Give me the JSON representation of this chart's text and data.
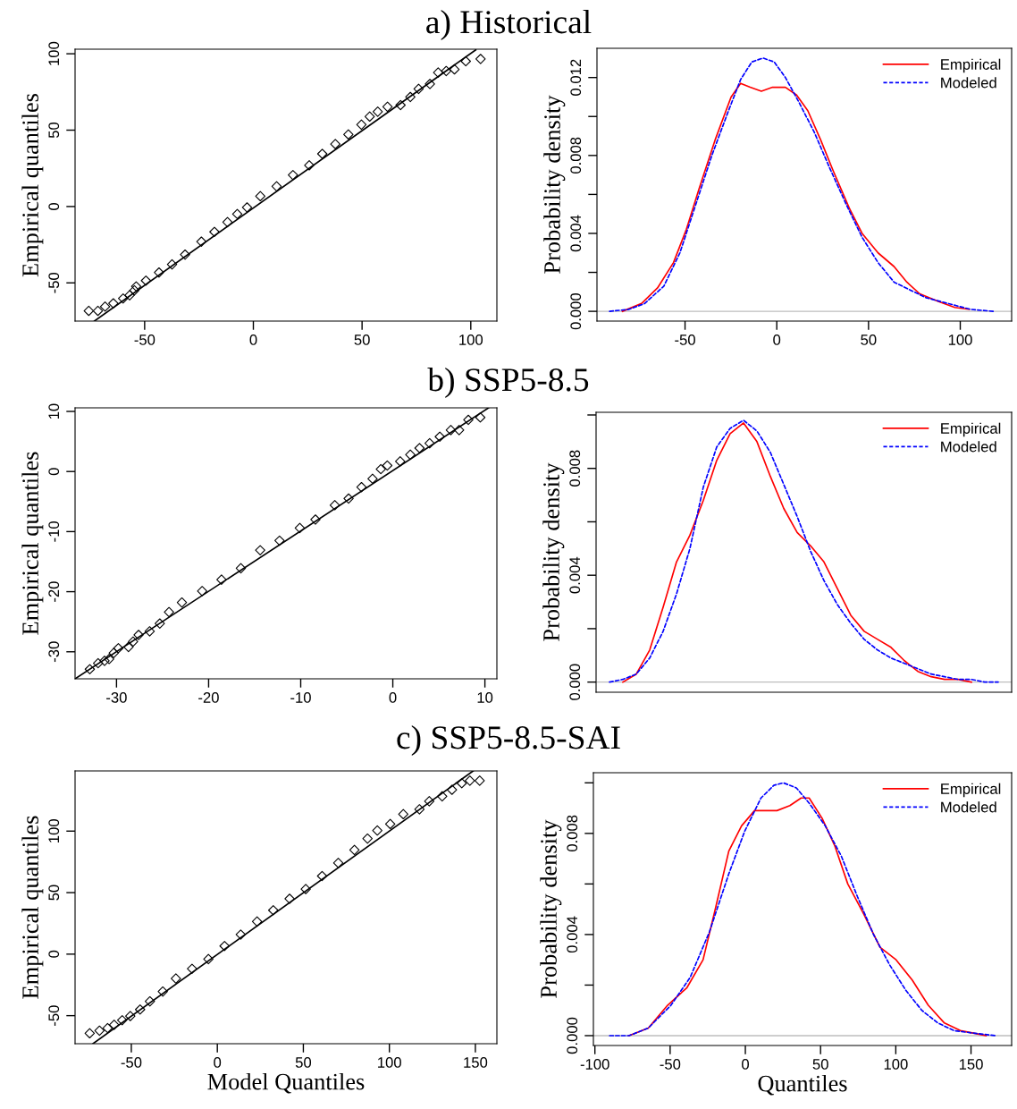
{
  "chart_data": [
    {
      "type": "scatter",
      "title": "a) Historical",
      "ylabel": "Empirical quantiles",
      "xlim": [
        -82,
        112
      ],
      "ylim": [
        -75,
        103
      ],
      "xticks": [
        -50,
        0,
        50,
        100
      ],
      "yticks": [
        -50,
        0,
        50,
        100
      ],
      "series": [
        {
          "type": "scatter",
          "marker": "diamond",
          "color": "#000000",
          "x": [
            -75.7,
            -71.5,
            -68.2,
            -64.4,
            -59.9,
            -56.9,
            -54.7,
            -53.9,
            -49.4,
            -43.4,
            -37.4,
            -31.4,
            -23.9,
            -17.9,
            -11.9,
            -7.4,
            -2.9,
            3.2,
            10.7,
            18.2,
            25.7,
            31.7,
            37.7,
            43.7,
            49.7,
            53.5,
            57.2,
            61.7,
            67.7,
            72.2,
            76.0,
            81.2,
            85.0,
            88.7,
            92.5,
            97.7,
            104.5
          ],
          "values": [
            -68.3,
            -68.3,
            -65.5,
            -63.4,
            -60.2,
            -58.1,
            -54.9,
            -52.3,
            -48.5,
            -43.2,
            -37.9,
            -31.5,
            -23.0,
            -16.6,
            -10.2,
            -4.9,
            -0.6,
            6.8,
            13.2,
            20.6,
            27.0,
            34.5,
            40.9,
            47.2,
            53.6,
            58.9,
            62.1,
            65.3,
            66.4,
            71.7,
            77.0,
            80.2,
            87.7,
            88.7,
            89.8,
            95.1,
            96.6
          ]
        },
        {
          "type": "line",
          "marker": "none",
          "color": "#000000",
          "x": [
            -73.1,
            102.3
          ],
          "values": [
            -75.0,
            102.6
          ]
        }
      ]
    },
    {
      "type": "line",
      "ylabel": "Probability density",
      "xlim": [
        -98,
        128
      ],
      "ylim": [
        -0.0005,
        0.0135
      ],
      "xticks": [
        -50,
        0,
        50,
        100
      ],
      "yticks": [
        {
          "value": 0,
          "label": "0.000"
        },
        {
          "value": 0.002,
          "label": null
        },
        0.004,
        {
          "value": 0.006,
          "label": null
        },
        0.008,
        {
          "value": 0.01,
          "label": null
        },
        0.012
      ],
      "legend": "top right",
      "ref_lines": [
        {
          "axis": "y",
          "value": 0,
          "color": "#bebebe"
        }
      ],
      "series": [
        {
          "name": "Empirical",
          "color": "#ff0000",
          "line_style": "solid",
          "x": [
            -84.1,
            -73.7,
            -65,
            -56.3,
            -49.3,
            -42.3,
            -33.6,
            -24.9,
            -19.7,
            -14.5,
            -8.4,
            -2.3,
            4.7,
            10.8,
            16.9,
            23.9,
            30.8,
            39.5,
            46.5,
            55.2,
            63.9,
            70.9,
            77.9,
            88.3,
            97,
            104.9
          ],
          "values": [
            0,
            0.0004,
            0.0012,
            0.0025,
            0.0042,
            0.0063,
            0.0088,
            0.011,
            0.0117,
            0.0115,
            0.0113,
            0.0115,
            0.0115,
            0.0111,
            0.0103,
            0.0088,
            0.0072,
            0.0053,
            0.004,
            0.003,
            0.0023,
            0.0015,
            0.0009,
            0.0005,
            0.0002,
            0.0001
          ]
        },
        {
          "name": "Modeled",
          "color": "#0000ff",
          "line_style": "dashed",
          "x": [
            -91.1,
            -80.7,
            -72,
            -61.5,
            -52.8,
            -44.1,
            -35.4,
            -26.7,
            -19.7,
            -13.6,
            -7.5,
            -1.4,
            4.7,
            11.7,
            20.4,
            29.1,
            37.8,
            46.5,
            55.2,
            63.9,
            72.6,
            81.3,
            93.5,
            105.7,
            117.9
          ],
          "values": [
            0,
            0.0001,
            0.0004,
            0.0013,
            0.003,
            0.0055,
            0.008,
            0.0102,
            0.0119,
            0.0128,
            0.013,
            0.0128,
            0.012,
            0.0108,
            0.0092,
            0.0073,
            0.0055,
            0.0038,
            0.0025,
            0.0015,
            0.0011,
            0.0007,
            0.0004,
            0.0001,
            0
          ]
        }
      ]
    },
    {
      "type": "scatter",
      "title": "b) SSP5-8.5",
      "ylabel": "Empirical quantiles",
      "xlim": [
        -34.5,
        11.3
      ],
      "ylim": [
        -34.5,
        10.6
      ],
      "xticks": [
        -30,
        -20,
        -10,
        0,
        10
      ],
      "yticks": [
        -30,
        -20,
        -10,
        0,
        10
      ],
      "series": [
        {
          "type": "scatter",
          "marker": "diamond",
          "color": "#000000",
          "x": [
            -32.9,
            -32.0,
            -31.3,
            -30.8,
            -30.3,
            -29.8,
            -28.7,
            -28.2,
            -27.6,
            -26.4,
            -25.3,
            -24.3,
            -22.9,
            -20.7,
            -18.6,
            -16.5,
            -14.4,
            -12.3,
            -10.1,
            -8.4,
            -6.3,
            -4.8,
            -3.4,
            -2.2,
            -1.3,
            -0.6,
            0.8,
            1.9,
            2.9,
            4.0,
            5.1,
            6.3,
            7.2,
            8.2,
            9.5
          ],
          "values": [
            -32.9,
            -31.9,
            -31.5,
            -31.2,
            -30.2,
            -29.4,
            -29.2,
            -28.3,
            -27.2,
            -26.6,
            -25.3,
            -23.4,
            -21.8,
            -19.9,
            -18.0,
            -16.1,
            -13.1,
            -11.5,
            -9.4,
            -8.0,
            -5.6,
            -4.5,
            -2.6,
            -1.2,
            0.4,
            1.0,
            1.7,
            2.8,
            3.9,
            4.7,
            5.8,
            6.9,
            6.9,
            8.6,
            9.0
          ]
        },
        {
          "type": "line",
          "marker": "none",
          "color": "#000000",
          "x": [
            -34.5,
            10.4
          ],
          "values": [
            -34.5,
            10.6
          ]
        }
      ]
    },
    {
      "type": "line",
      "ylabel": "Probability density",
      "categories": [
        null,
        null,
        null,
        null,
        null,
        null,
        null,
        null,
        null,
        null,
        null,
        null,
        null,
        null,
        null,
        null,
        null,
        null,
        null,
        null,
        null,
        null,
        null,
        null,
        null,
        null,
        null,
        null,
        null,
        null
      ],
      "ylim": [
        -0.00038,
        0.0101
      ],
      "tick_labels": "y",
      "yticks": [
        {
          "value": 0,
          "label": "0.000"
        },
        {
          "value": 0.002,
          "label": null
        },
        0.004,
        {
          "value": 0.006,
          "label": null
        },
        0.008,
        {
          "value": 0.01,
          "label": null
        }
      ],
      "legend": "top right",
      "ref_lines": [
        {
          "axis": "y",
          "value": 0,
          "color": "#bebebe"
        }
      ],
      "series": [
        {
          "name": "Empirical",
          "color": "#ff0000",
          "line_style": "solid",
          "values": [
            null,
            0,
            0.0003,
            0.0012,
            0.0028,
            0.0045,
            0.0055,
            0.0068,
            0.0083,
            0.0093,
            0.0097,
            0.009,
            0.0077,
            0.0065,
            0.0056,
            0.0051,
            0.0045,
            0.0035,
            0.0025,
            0.0019,
            0.0016,
            0.0013,
            0.0008,
            0.0004,
            0.0002,
            0.0001,
            0.0001,
            0,
            null,
            null
          ]
        },
        {
          "name": "Modeled",
          "color": "#0000ff",
          "line_style": "dashed",
          "values": [
            0,
            0.0001,
            0.0003,
            0.0009,
            0.0019,
            0.0033,
            0.005,
            0.0073,
            0.0088,
            0.0095,
            0.0098,
            0.0094,
            0.0086,
            0.0074,
            0.0062,
            0.0049,
            0.0038,
            0.0029,
            0.0022,
            0.0016,
            0.0012,
            0.0009,
            0.0007,
            0.0005,
            0.0003,
            0.0002,
            0.0001,
            0.0001,
            0,
            0
          ]
        }
      ]
    },
    {
      "type": "scatter",
      "title": "c) SSP5-8.5-SAI",
      "xlabel": "Model Quantiles",
      "ylabel": "Empirical quantiles",
      "xlim": [
        -82.7,
        162.5
      ],
      "ylim": [
        -72.8,
        148.9
      ],
      "xticks": [
        -50,
        0,
        50,
        100,
        150
      ],
      "yticks": [
        -50,
        0,
        50,
        100
      ],
      "series": [
        {
          "type": "scatter",
          "marker": "diamond",
          "color": "#000000",
          "x": [
            -74.2,
            -68.5,
            -63.8,
            -60.0,
            -55.3,
            -50.6,
            -44.9,
            -39.2,
            -31.7,
            -24.1,
            -14.7,
            -5.2,
            4.2,
            13.6,
            23.1,
            32.5,
            42.0,
            51.4,
            60.9,
            70.3,
            79.7,
            87.3,
            93.0,
            100.5,
            108.1,
            117.5,
            123.2,
            130.7,
            136.4,
            142.1,
            146.8,
            152.5
          ],
          "values": [
            -64.3,
            -62.2,
            -60.1,
            -57.4,
            -53.7,
            -50.3,
            -45.0,
            -38.4,
            -30.4,
            -19.8,
            -11.9,
            -4.0,
            6.6,
            15.9,
            26.5,
            35.7,
            45.0,
            52.9,
            63.5,
            74.1,
            84.7,
            93.9,
            100.5,
            105.8,
            113.8,
            117.7,
            124.3,
            128.3,
            133.6,
            138.9,
            141.0,
            141.0
          ]
        },
        {
          "type": "line",
          "marker": "none",
          "color": "#000000",
          "x": [
            -72.3,
            148.7
          ],
          "values": [
            -72.8,
            148.9
          ]
        }
      ]
    },
    {
      "type": "line",
      "xlabel": "Quantiles",
      "ylabel": "Probability density",
      "xlim": [
        -101,
        177
      ],
      "ylim": [
        -0.00039,
        0.0104
      ],
      "xticks": [
        -100,
        -50,
        0,
        50,
        100,
        150
      ],
      "yticks": [
        {
          "value": 0,
          "label": "0.000"
        },
        {
          "value": 0.002,
          "label": null
        },
        0.004,
        {
          "value": 0.006,
          "label": null
        },
        0.008,
        {
          "value": 0.01,
          "label": null
        }
      ],
      "legend": "top right",
      "ref_lines": [
        {
          "axis": "y",
          "value": 0,
          "color": "#bebebe"
        }
      ],
      "series": [
        {
          "name": "Empirical",
          "color": "#ff0000",
          "line_style": "solid",
          "x": [
            -77.3,
            -64.5,
            -51.7,
            -38.8,
            -28.1,
            -19.6,
            -11.0,
            -2.5,
            6.1,
            12.5,
            21.0,
            29.6,
            37.1,
            42.4,
            51.0,
            59.5,
            68.1,
            78.8,
            89.5,
            100.2,
            110.9,
            121.6,
            132.3,
            142.9,
            151.5,
            160
          ],
          "values": [
            0,
            0.0003,
            0.0012,
            0.0019,
            0.003,
            0.0051,
            0.0073,
            0.0083,
            0.0089,
            0.0089,
            0.0089,
            0.0091,
            0.0094,
            0.0094,
            0.0086,
            0.0075,
            0.006,
            0.0048,
            0.0035,
            0.003,
            0.0022,
            0.0012,
            0.0005,
            0.0002,
            0.0001,
            0
          ]
        },
        {
          "name": "Modeled",
          "color": "#0000ff",
          "line_style": "dashed",
          "x": [
            -90.2,
            -77.3,
            -64.5,
            -49.5,
            -36.7,
            -23.9,
            -11.0,
            -0.34,
            10.4,
            18.9,
            25.3,
            33.9,
            42.4,
            53.1,
            63.8,
            74.5,
            85.2,
            95.9,
            106.6,
            117.3,
            128.0,
            138.7,
            151.5,
            166.5
          ],
          "values": [
            0,
            0,
            0.0003,
            0.0012,
            0.0023,
            0.0041,
            0.0064,
            0.0081,
            0.0094,
            0.0099,
            0.01,
            0.0098,
            0.0092,
            0.0083,
            0.0071,
            0.0055,
            0.004,
            0.0028,
            0.0018,
            0.001,
            0.0005,
            0.0002,
            0.0001,
            0
          ]
        }
      ]
    }
  ]
}
